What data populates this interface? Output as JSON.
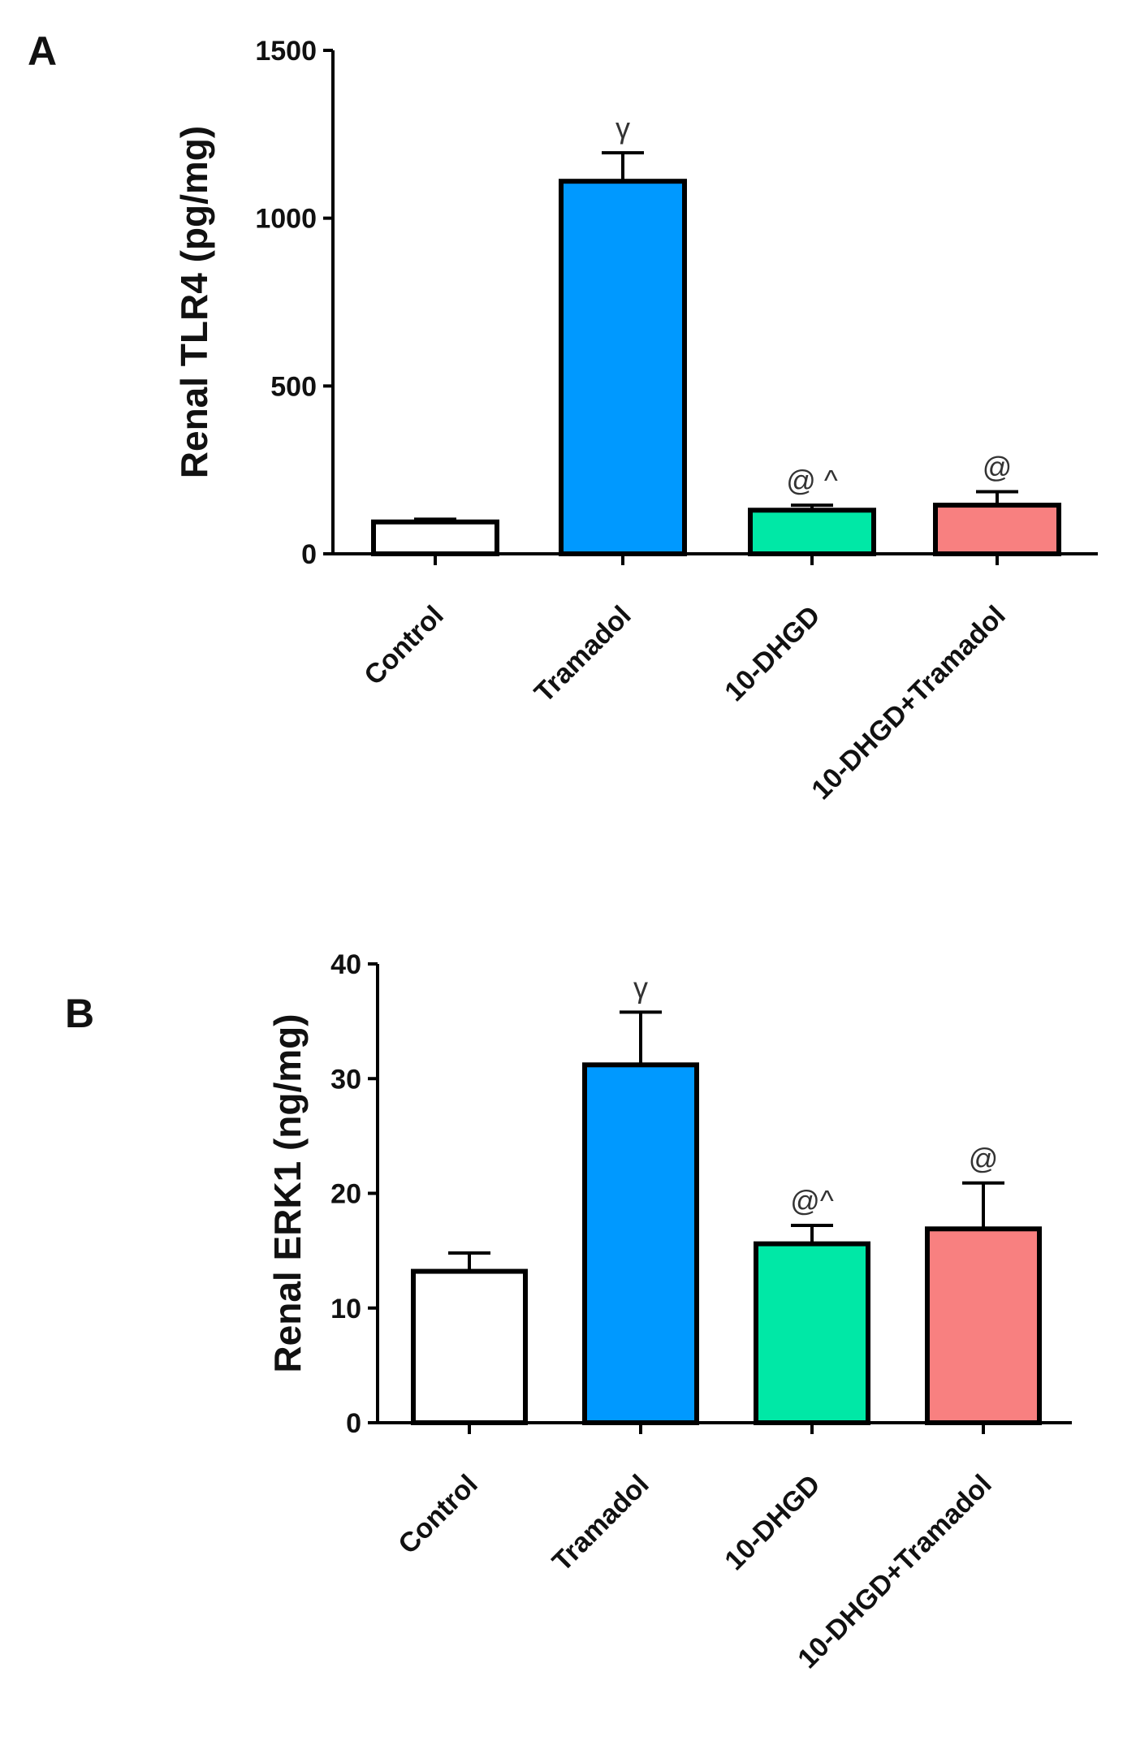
{
  "chart_data": [
    {
      "panel": "A",
      "type": "bar",
      "ylabel": "Renal TLR4 (pg/mg)",
      "xlabel": "",
      "ylim": [
        0,
        1500
      ],
      "yticks": [
        0,
        500,
        1000,
        1500
      ],
      "categories": [
        "Control",
        "Tramadol",
        "10-DHGD",
        "10-DHGD+Tramadol"
      ],
      "values": [
        95,
        1110,
        130,
        145
      ],
      "errors": [
        8,
        85,
        15,
        40
      ],
      "colors": [
        "#ffffff",
        "#0099ff",
        "#00e8a6",
        "#f88080"
      ],
      "annotations": [
        "",
        "γ",
        "@ ^",
        "@"
      ]
    },
    {
      "panel": "B",
      "type": "bar",
      "ylabel": "Renal ERK1 (ng/mg)",
      "xlabel": "",
      "ylim": [
        0,
        40
      ],
      "yticks": [
        0,
        10,
        20,
        30,
        40
      ],
      "categories": [
        "Control",
        "Tramadol",
        "10-DHGD",
        "10-DHGD+Tramadol"
      ],
      "values": [
        13.2,
        31.2,
        15.6,
        16.9
      ],
      "errors": [
        1.6,
        4.6,
        1.6,
        4.0
      ],
      "colors": [
        "#ffffff",
        "#0099ff",
        "#00e8a6",
        "#f88080"
      ],
      "annotations": [
        "",
        "γ",
        "@^",
        "@"
      ]
    }
  ]
}
